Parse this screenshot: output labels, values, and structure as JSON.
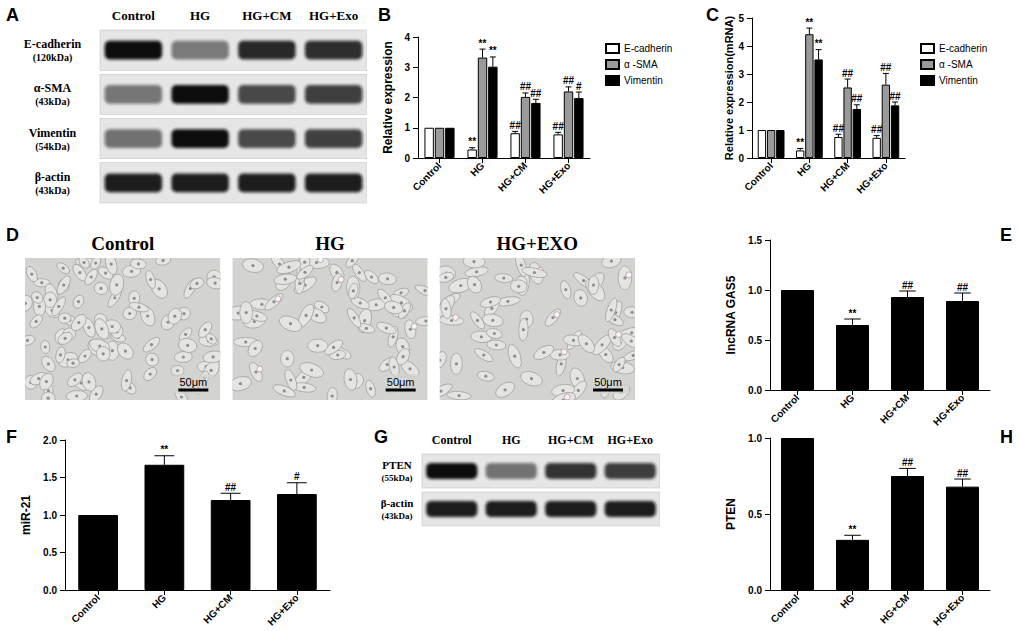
{
  "chart_data": [
    {
      "panel": "B",
      "type": "bar",
      "y_label": "Relative expression",
      "categories": [
        "Control",
        "HG",
        "HG+CM",
        "HG+Exo"
      ],
      "series": [
        {
          "name": "E-cadherin",
          "color": "#ffffff",
          "values": [
            1,
            0.28,
            0.82,
            0.78
          ],
          "errors": [
            null,
            0.06,
            0.06,
            0.07
          ],
          "marks": [
            null,
            "**",
            "##",
            "##"
          ]
        },
        {
          "name": "α -SMA",
          "color": "#9a9a9a",
          "values": [
            1,
            3.32,
            2.02,
            2.2
          ],
          "errors": [
            null,
            0.28,
            0.13,
            0.15
          ],
          "marks": [
            null,
            "**",
            "##",
            "##"
          ]
        },
        {
          "name": "Vimentin",
          "color": "#000000",
          "values": [
            1,
            3.02,
            1.82,
            1.98
          ],
          "errors": [
            null,
            0.32,
            0.12,
            0.2
          ],
          "marks": [
            null,
            "**",
            "##",
            "#"
          ]
        }
      ],
      "ylim": [
        0,
        4
      ],
      "yticks": [
        0,
        1,
        2,
        3,
        4
      ],
      "grid": false,
      "legend": "upper right"
    },
    {
      "panel": "C",
      "type": "bar",
      "y_label": "Relative expression(mRNA)",
      "categories": [
        "Control",
        "HG",
        "HG+CM",
        "HG+Exo"
      ],
      "series": [
        {
          "name": "E-cadherin",
          "color": "#ffffff",
          "values": [
            1,
            0.27,
            0.75,
            0.72
          ],
          "errors": [
            null,
            0.07,
            0.1,
            0.08
          ],
          "marks": [
            null,
            "**",
            "##",
            "##"
          ]
        },
        {
          "name": "α -SMA",
          "color": "#9a9a9a",
          "values": [
            1,
            4.42,
            2.52,
            2.62
          ],
          "errors": [
            null,
            0.22,
            0.3,
            0.4
          ],
          "marks": [
            null,
            "**",
            "##",
            "##"
          ]
        },
        {
          "name": "Vimentin",
          "color": "#000000",
          "values": [
            1,
            3.52,
            1.75,
            1.88
          ],
          "errors": [
            null,
            0.35,
            0.15,
            0.12
          ],
          "marks": [
            null,
            "**",
            "##",
            "##"
          ]
        }
      ],
      "ylim": [
        0,
        5
      ],
      "yticks": [
        0,
        1,
        2,
        3,
        4,
        5
      ],
      "grid": false,
      "legend": "upper right"
    },
    {
      "panel": "E",
      "type": "bar",
      "y_label": "lncRNA GAS5",
      "categories": [
        "Control",
        "HG",
        "HG+CM",
        "HG+Exo"
      ],
      "color": "#000000",
      "values": [
        1,
        0.65,
        0.93,
        0.89
      ],
      "errors": [
        null,
        0.06,
        0.06,
        0.08
      ],
      "marks": [
        null,
        "**",
        "##",
        "##"
      ],
      "ylim": [
        0,
        1.5
      ],
      "yticks": [
        {
          "value": 0,
          "label": "0.0"
        },
        0.5,
        {
          "value": 1,
          "label": "1.0"
        },
        1.5
      ],
      "grid": false
    },
    {
      "panel": "F",
      "type": "bar",
      "y_label": "miR-21",
      "categories": [
        "Control",
        "HG",
        "HG+CM",
        "HG+Exo"
      ],
      "color": "#000000",
      "values": [
        1,
        1.67,
        1.2,
        1.28
      ],
      "errors": [
        null,
        0.12,
        0.09,
        0.15
      ],
      "marks": [
        null,
        "**",
        "##",
        "#"
      ],
      "ylim": [
        0,
        2
      ],
      "yticks": [
        {
          "value": 0,
          "label": "0.0"
        },
        0.5,
        {
          "value": 1,
          "label": "1.0"
        },
        1.5,
        {
          "value": 2,
          "label": "2.0"
        }
      ],
      "grid": false
    },
    {
      "panel": "H",
      "type": "bar",
      "y_label": "PTEN",
      "categories": [
        "Control",
        "HG",
        "HG+CM",
        "HG+Exo"
      ],
      "color": "#000000",
      "values": [
        1,
        0.33,
        0.75,
        0.68
      ],
      "errors": [
        null,
        0.03,
        0.05,
        0.05
      ],
      "marks": [
        null,
        "**",
        "##",
        "##"
      ],
      "ylim": [
        0,
        1
      ],
      "yticks": [
        {
          "value": 0,
          "label": "0.0"
        },
        0.5,
        {
          "value": 1,
          "label": "1.0"
        }
      ],
      "grid": false
    }
  ],
  "blots": [
    {
      "panel": "A",
      "lanes": [
        "Control",
        "HG",
        "HG+CM",
        "HG+Exo"
      ],
      "rows": [
        {
          "label": "E-cadherin",
          "size": "(120kDa)"
        },
        {
          "label": "α-SMA",
          "size": "(43kDa)"
        },
        {
          "label": "Vimentin",
          "size": "(54kDa)"
        },
        {
          "label": "β-actin",
          "size": "(43kDa)"
        }
      ]
    },
    {
      "panel": "G",
      "lanes": [
        "Control",
        "HG",
        "HG+CM",
        "HG+Exo"
      ],
      "rows": [
        {
          "label": "PTEN",
          "size": "(55kDa)"
        },
        {
          "label": "β-actin",
          "size": "(43kDa)"
        }
      ]
    }
  ],
  "micrographs": {
    "panel": "D",
    "images": [
      {
        "title": "Control",
        "scale_bar": "50μm"
      },
      {
        "title": "HG",
        "scale_bar": "50μm"
      },
      {
        "title": "HG+EXO",
        "scale_bar": "50μm"
      }
    ]
  }
}
